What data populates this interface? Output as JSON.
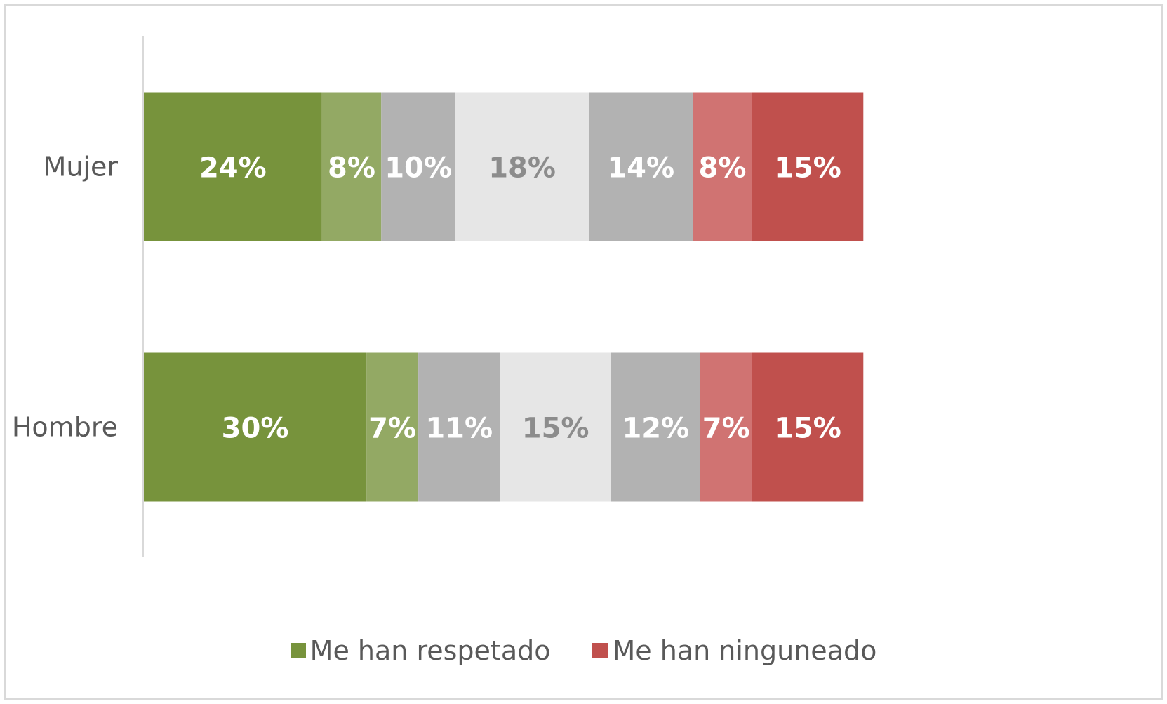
{
  "chart_data": {
    "type": "bar",
    "orientation": "horizontal",
    "stacked": true,
    "categories": [
      "Mujer",
      "Hombre"
    ],
    "series": [
      {
        "values": [
          24,
          30
        ],
        "color": "#77933c",
        "label_color": "#ffffff"
      },
      {
        "values": [
          8,
          7
        ],
        "color": "#93a964",
        "label_color": "#ffffff"
      },
      {
        "values": [
          10,
          11
        ],
        "color": "#b2b2b2",
        "label_color": "#ffffff"
      },
      {
        "values": [
          18,
          15
        ],
        "color": "#e6e6e6",
        "label_color": "#8c8c8c"
      },
      {
        "values": [
          14,
          12
        ],
        "color": "#b2b2b2",
        "label_color": "#ffffff"
      },
      {
        "values": [
          8,
          7
        ],
        "color": "#d07372",
        "label_color": "#ffffff"
      },
      {
        "values": [
          15,
          15
        ],
        "color": "#c0504d",
        "label_color": "#ffffff"
      }
    ],
    "value_suffix": "%",
    "xlim": [
      0,
      100
    ],
    "grid": false,
    "legend_position": "bottom"
  },
  "legend": {
    "items": [
      {
        "label": "Me han respetado",
        "color": "#77933c"
      },
      {
        "label": "Me han ninguneado",
        "color": "#c0504d"
      }
    ]
  }
}
